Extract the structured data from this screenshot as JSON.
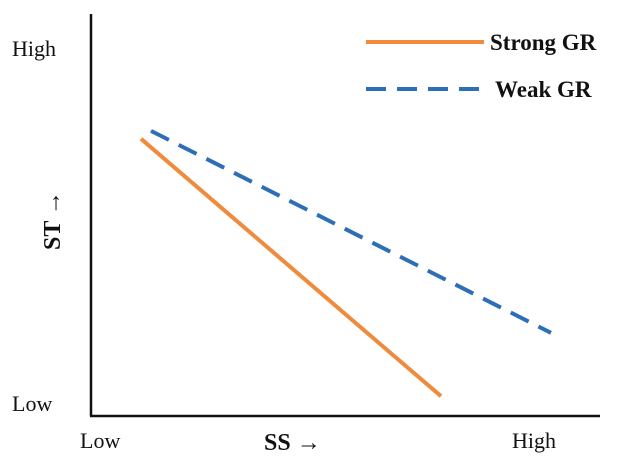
{
  "chart_data": {
    "type": "line",
    "xlabel": "SS →",
    "ylabel": "ST →",
    "x_ticks": {
      "low": "Low",
      "high": "High"
    },
    "y_ticks": {
      "low": "Low",
      "high": "High"
    },
    "xlim": [
      0,
      1
    ],
    "ylim": [
      0,
      1
    ],
    "grid": false,
    "legend_position": "top-right",
    "series": [
      {
        "name": "Strong GR",
        "color": "#F08A3C",
        "dash": "solid",
        "x": [
          0.1,
          0.7
        ],
        "y": [
          0.7,
          0.05
        ]
      },
      {
        "name": "Weak GR",
        "color": "#2D6FB7",
        "dash": "dashed",
        "x": [
          0.12,
          0.92
        ],
        "y": [
          0.72,
          0.21
        ]
      }
    ]
  }
}
